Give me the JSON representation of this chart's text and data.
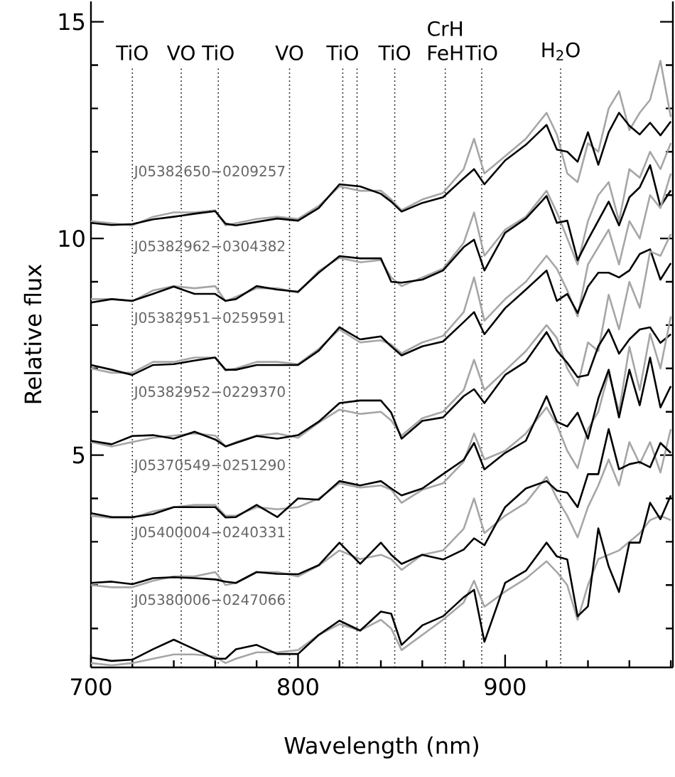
{
  "chart_data": {
    "type": "line",
    "xlabel": "Wavelength (nm)",
    "ylabel": "Relative flux",
    "xlim": [
      700,
      981
    ],
    "ylim": [
      0.1,
      15.47
    ],
    "xticks": [
      700,
      {
        "value": 720,
        "label": null
      },
      {
        "value": 740,
        "label": null
      },
      {
        "value": 760,
        "label": null
      },
      {
        "value": 780,
        "label": null
      },
      800,
      {
        "value": 820,
        "label": null
      },
      {
        "value": 840,
        "label": null
      },
      {
        "value": 860,
        "label": null
      },
      {
        "value": 880,
        "label": null
      },
      900,
      {
        "value": 920,
        "label": null
      },
      {
        "value": 940,
        "label": null
      },
      {
        "value": 960,
        "label": null
      },
      {
        "value": 980,
        "label": null
      }
    ],
    "yticks": [
      {
        "value": 1,
        "label": null
      },
      {
        "value": 2,
        "label": null
      },
      {
        "value": 3,
        "label": null
      },
      {
        "value": 4,
        "label": null
      },
      5,
      {
        "value": 6,
        "label": null
      },
      {
        "value": 7,
        "label": null
      },
      {
        "value": 8,
        "label": null
      },
      {
        "value": 9,
        "label": null
      },
      10,
      {
        "value": 11,
        "label": null
      },
      {
        "value": 12,
        "label": null
      },
      {
        "value": 13,
        "label": null
      },
      {
        "value": 14,
        "label": null
      },
      15
    ],
    "x": [
      700,
      710,
      720,
      730,
      740,
      750,
      760,
      765,
      770,
      780,
      790,
      800,
      810,
      820,
      830,
      840,
      845,
      850,
      860,
      870,
      880,
      885,
      890,
      900,
      910,
      920,
      925,
      930,
      935,
      940,
      945,
      950,
      955,
      960,
      965,
      970,
      975,
      980
    ],
    "series": [
      {
        "color": "#a6a6a6",
        "values": [
          10.4,
          10.35,
          10.3,
          10.5,
          10.6,
          10.6,
          10.65,
          10.3,
          10.35,
          10.45,
          10.5,
          10.45,
          10.75,
          11.2,
          11.1,
          11.1,
          10.9,
          10.65,
          10.9,
          11.05,
          11.6,
          12.3,
          11.5,
          11.9,
          12.3,
          12.9,
          12.4,
          11.5,
          11.3,
          12.2,
          12.0,
          13.0,
          13.4,
          12.5,
          12.9,
          13.2,
          14.1,
          12.8
        ]
      },
      {
        "color": "#000000",
        "values": [
          10.36,
          10.31,
          10.33,
          10.44,
          10.5,
          10.57,
          10.63,
          10.34,
          10.3,
          10.38,
          10.46,
          10.41,
          10.7,
          11.25,
          11.2,
          11.03,
          10.85,
          10.62,
          10.82,
          10.95,
          11.39,
          11.6,
          11.25,
          11.8,
          12.16,
          12.62,
          12.05,
          12.0,
          11.77,
          12.45,
          11.7,
          12.45,
          12.9,
          12.6,
          12.4,
          12.67,
          12.38,
          12.7
        ]
      },
      {
        "color": "#a6a6a6",
        "values": [
          8.6,
          8.6,
          8.55,
          8.8,
          8.9,
          8.85,
          8.9,
          8.55,
          8.65,
          8.85,
          8.85,
          8.75,
          9.25,
          9.55,
          9.45,
          9.5,
          9.1,
          8.9,
          9.1,
          9.3,
          9.9,
          10.6,
          9.6,
          10.2,
          10.5,
          11.1,
          10.6,
          10.0,
          9.4,
          10.4,
          11.0,
          11.3,
          10.4,
          11.6,
          11.4,
          12.0,
          11.6,
          12.2
        ]
      },
      {
        "color": "#000000",
        "values": [
          8.52,
          8.6,
          8.56,
          8.72,
          8.89,
          8.72,
          8.72,
          8.56,
          8.6,
          8.9,
          8.82,
          8.77,
          9.21,
          9.59,
          9.54,
          9.54,
          9.0,
          8.98,
          9.05,
          9.26,
          9.8,
          9.97,
          9.26,
          10.13,
          10.46,
          10.98,
          10.36,
          10.41,
          9.5,
          9.97,
          10.41,
          10.85,
          10.3,
          10.95,
          11.18,
          11.69,
          10.74,
          11.11
        ]
      },
      {
        "color": "#a6a6a6",
        "values": [
          7.0,
          6.9,
          6.9,
          7.15,
          7.15,
          7.25,
          7.25,
          6.95,
          7.0,
          7.15,
          7.15,
          7.1,
          7.45,
          7.9,
          7.6,
          7.65,
          7.55,
          7.35,
          7.6,
          7.75,
          8.3,
          9.1,
          8.1,
          8.6,
          9.0,
          9.6,
          9.3,
          8.8,
          8.2,
          9.4,
          9.8,
          10.2,
          9.4,
          10.4,
          10.0,
          11.0,
          10.7,
          11.5
        ]
      },
      {
        "color": "#000000",
        "values": [
          7.08,
          6.97,
          6.85,
          7.08,
          7.1,
          7.18,
          7.25,
          6.97,
          6.97,
          7.08,
          7.08,
          7.08,
          7.41,
          7.95,
          7.67,
          7.74,
          7.51,
          7.3,
          7.51,
          7.62,
          8.07,
          8.3,
          7.79,
          8.39,
          8.82,
          9.26,
          8.56,
          8.72,
          8.28,
          8.89,
          9.21,
          9.21,
          9.1,
          9.26,
          9.64,
          9.75,
          9.05,
          9.43
        ]
      },
      {
        "color": "#a6a6a6",
        "values": [
          5.3,
          5.2,
          5.3,
          5.4,
          5.45,
          5.5,
          5.45,
          5.2,
          5.3,
          5.45,
          5.5,
          5.4,
          5.75,
          6.05,
          5.95,
          6.0,
          5.8,
          5.45,
          5.85,
          6.0,
          6.5,
          7.2,
          6.5,
          6.95,
          7.4,
          8.0,
          7.7,
          7.0,
          6.6,
          7.6,
          7.4,
          8.7,
          7.9,
          9.0,
          8.4,
          9.7,
          9.6,
          10.1
        ]
      },
      {
        "color": "#000000",
        "values": [
          5.33,
          5.25,
          5.44,
          5.46,
          5.38,
          5.54,
          5.36,
          5.2,
          5.28,
          5.44,
          5.38,
          5.46,
          5.77,
          6.2,
          6.26,
          6.26,
          5.98,
          5.38,
          5.79,
          5.87,
          6.36,
          6.52,
          6.2,
          6.85,
          7.16,
          7.84,
          7.41,
          7.13,
          6.8,
          6.85,
          7.51,
          7.9,
          7.34,
          7.67,
          7.9,
          7.95,
          7.59,
          7.79
        ]
      },
      {
        "color": "#a6a6a6",
        "values": [
          3.6,
          3.55,
          3.55,
          3.7,
          3.8,
          3.85,
          3.85,
          3.6,
          3.6,
          3.8,
          3.75,
          3.8,
          4.0,
          4.35,
          4.25,
          4.3,
          4.2,
          3.9,
          4.2,
          4.35,
          4.85,
          5.5,
          4.9,
          5.1,
          5.5,
          6.1,
          5.7,
          5.1,
          4.7,
          5.6,
          6.0,
          6.9,
          6.0,
          7.5,
          6.5,
          7.8,
          7.0,
          8.2
        ]
      },
      {
        "color": "#000000",
        "values": [
          3.66,
          3.57,
          3.57,
          3.64,
          3.8,
          3.8,
          3.8,
          3.56,
          3.57,
          3.85,
          3.57,
          4.0,
          3.97,
          4.4,
          4.3,
          4.4,
          4.23,
          4.07,
          4.23,
          4.56,
          4.89,
          5.28,
          4.67,
          5.05,
          5.33,
          6.36,
          5.77,
          5.66,
          5.98,
          5.38,
          6.31,
          6.97,
          5.87,
          6.97,
          6.15,
          7.25,
          6.1,
          6.59
        ]
      },
      {
        "color": "#a6a6a6",
        "values": [
          2.0,
          1.95,
          1.95,
          2.1,
          2.2,
          2.2,
          2.3,
          2.0,
          2.05,
          2.3,
          2.3,
          2.2,
          2.45,
          2.8,
          2.6,
          2.7,
          2.6,
          2.35,
          2.7,
          2.8,
          3.3,
          4.0,
          3.2,
          3.6,
          3.9,
          4.5,
          4.0,
          3.6,
          3.1,
          3.8,
          4.3,
          4.9,
          4.3,
          5.3,
          4.8,
          5.3,
          4.6,
          5.6
        ]
      },
      {
        "color": "#000000",
        "values": [
          2.05,
          2.08,
          2.02,
          2.16,
          2.18,
          2.16,
          2.13,
          2.08,
          2.05,
          2.3,
          2.26,
          2.25,
          2.46,
          2.98,
          2.49,
          2.98,
          2.7,
          2.49,
          2.7,
          2.59,
          2.82,
          3.08,
          2.92,
          3.8,
          4.23,
          4.4,
          4.18,
          4.13,
          3.8,
          4.56,
          4.56,
          5.6,
          4.67,
          4.79,
          4.84,
          4.72,
          5.28,
          5.05
        ]
      },
      {
        "color": "#a6a6a6",
        "values": [
          0.2,
          0.15,
          0.2,
          0.3,
          0.4,
          0.4,
          0.35,
          0.2,
          0.3,
          0.45,
          0.45,
          0.5,
          0.85,
          1.1,
          0.95,
          1.2,
          1.0,
          0.5,
          0.85,
          1.2,
          1.6,
          2.1,
          1.5,
          1.85,
          2.15,
          2.55,
          2.3,
          2.0,
          1.2,
          2.0,
          2.6,
          2.7,
          2.8,
          3.0,
          3.2,
          3.5,
          3.6,
          3.5
        ]
      },
      {
        "color": "#000000",
        "values": [
          0.33,
          0.25,
          0.28,
          0.52,
          0.74,
          0.52,
          0.3,
          0.3,
          0.52,
          0.62,
          0.41,
          0.41,
          0.85,
          1.18,
          0.95,
          1.39,
          1.34,
          0.62,
          1.07,
          1.28,
          1.72,
          1.89,
          0.69,
          2.05,
          2.33,
          2.98,
          2.66,
          2.59,
          1.28,
          1.51,
          3.31,
          2.43,
          1.84,
          2.98,
          2.98,
          3.9,
          3.52,
          4.07
        ]
      }
    ],
    "annotations": [
      "J05382650−0209257",
      "J05382962−0304382",
      "J05382951−0259591",
      "J05382952−0229370",
      "J05370549−0251290",
      "J05400004−0240331",
      "J05380006−0247066"
    ],
    "ref_lines": [
      {
        "axis": "x",
        "value": 720,
        "label": "TiO",
        "line_style": "dotted",
        "color": "#000000"
      },
      {
        "axis": "x",
        "value": 743.6,
        "label": "VO",
        "line_style": "dotted",
        "color": "#000000"
      },
      {
        "axis": "x",
        "value": 761.5,
        "label": "TiO",
        "line_style": "dotted",
        "color": "#000000"
      },
      {
        "axis": "x",
        "value": 795.9,
        "label": "VO",
        "line_style": "dotted",
        "color": "#000000"
      },
      {
        "axis": "x",
        "value": 821.6,
        "label": "TiO",
        "line_style": "dotted",
        "color": "#000000"
      },
      {
        "axis": "x",
        "value": 828.5,
        "label": null,
        "line_style": "dotted",
        "color": "#000000"
      },
      {
        "axis": "x",
        "value": 846.7,
        "label": "TiO",
        "line_style": "dotted",
        "color": "#000000"
      },
      {
        "axis": "x",
        "value": 871.1,
        "label": "CrH FeH",
        "line_style": "dotted",
        "color": "#000000"
      },
      {
        "axis": "x",
        "value": 888.7,
        "label": "TiO",
        "line_style": "dotted",
        "color": "#000000"
      },
      {
        "axis": "x",
        "value": 926.8,
        "label": "H$_{2}$O",
        "line_style": "dotted",
        "color": "#000000"
      }
    ]
  }
}
